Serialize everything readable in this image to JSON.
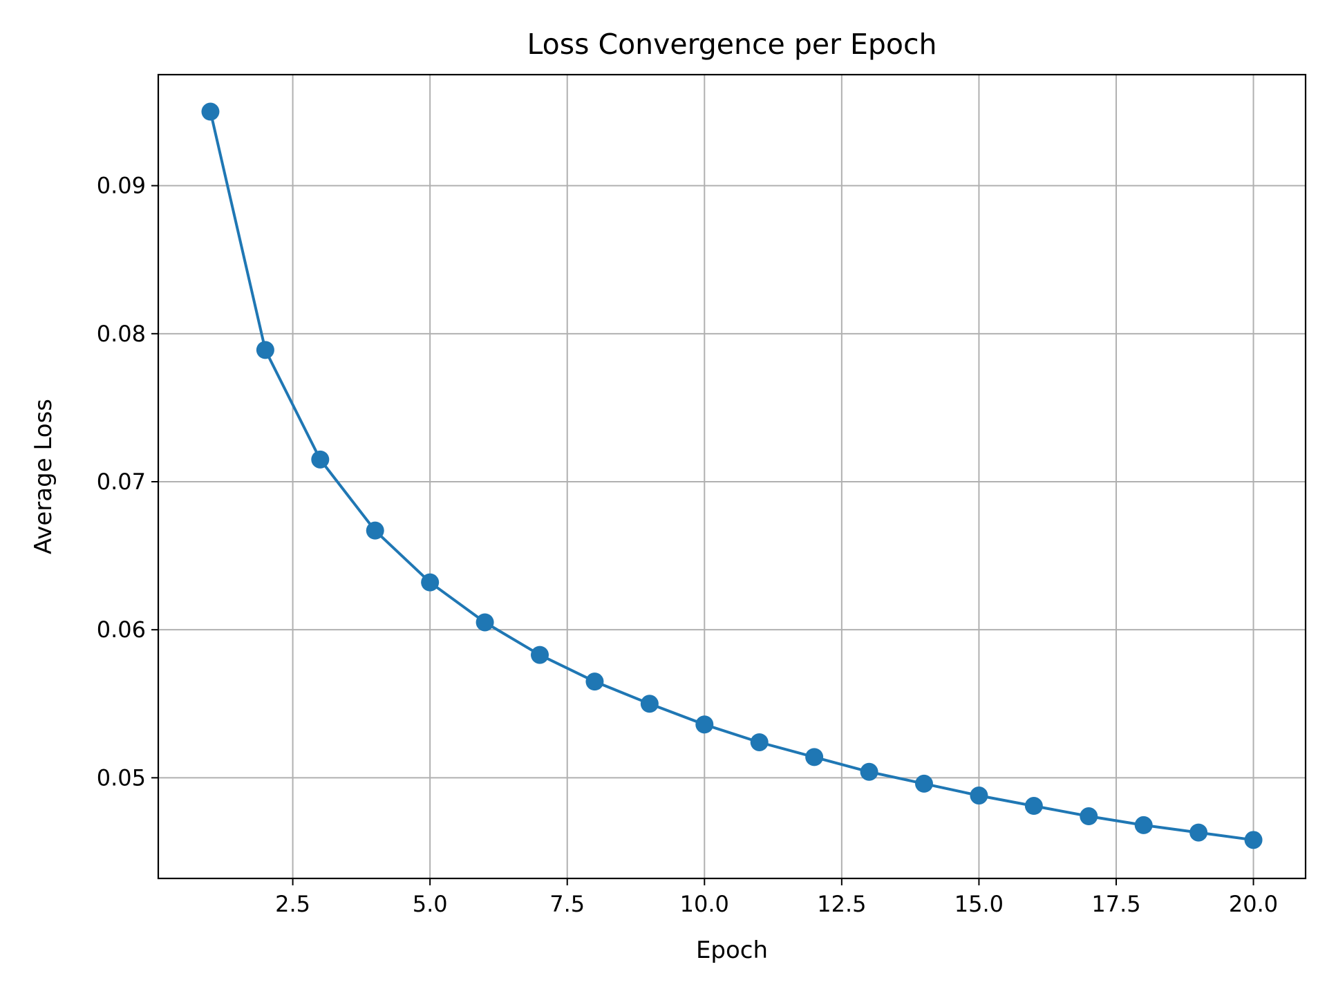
{
  "chart_data": {
    "type": "line",
    "title": "Loss Convergence per Epoch",
    "xlabel": "Epoch",
    "ylabel": "Average Loss",
    "xlim": [
      0.05,
      20.95
    ],
    "ylim": [
      0.0432,
      0.0975
    ],
    "xticks": [
      2.5,
      5.0,
      7.5,
      10.0,
      12.5,
      15.0,
      17.5,
      20.0
    ],
    "xtick_labels": [
      "2.5",
      "5.0",
      "7.5",
      "10.0",
      "12.5",
      "15.0",
      "17.5",
      "20.0"
    ],
    "yticks": [
      0.05,
      0.06,
      0.07,
      0.08,
      0.09
    ],
    "ytick_labels": [
      "0.05",
      "0.06",
      "0.07",
      "0.08",
      "0.09"
    ],
    "grid": true,
    "series": [
      {
        "color": "#1f77b4",
        "marker": "circle",
        "x": [
          1,
          2,
          3,
          4,
          5,
          6,
          7,
          8,
          9,
          10,
          11,
          12,
          13,
          14,
          15,
          16,
          17,
          18,
          19,
          20
        ],
        "y": [
          0.095,
          0.0789,
          0.0715,
          0.0667,
          0.0632,
          0.0605,
          0.0583,
          0.0565,
          0.055,
          0.0536,
          0.0524,
          0.0514,
          0.0504,
          0.0496,
          0.0488,
          0.0481,
          0.0474,
          0.0468,
          0.0463,
          0.0458
        ]
      }
    ]
  }
}
